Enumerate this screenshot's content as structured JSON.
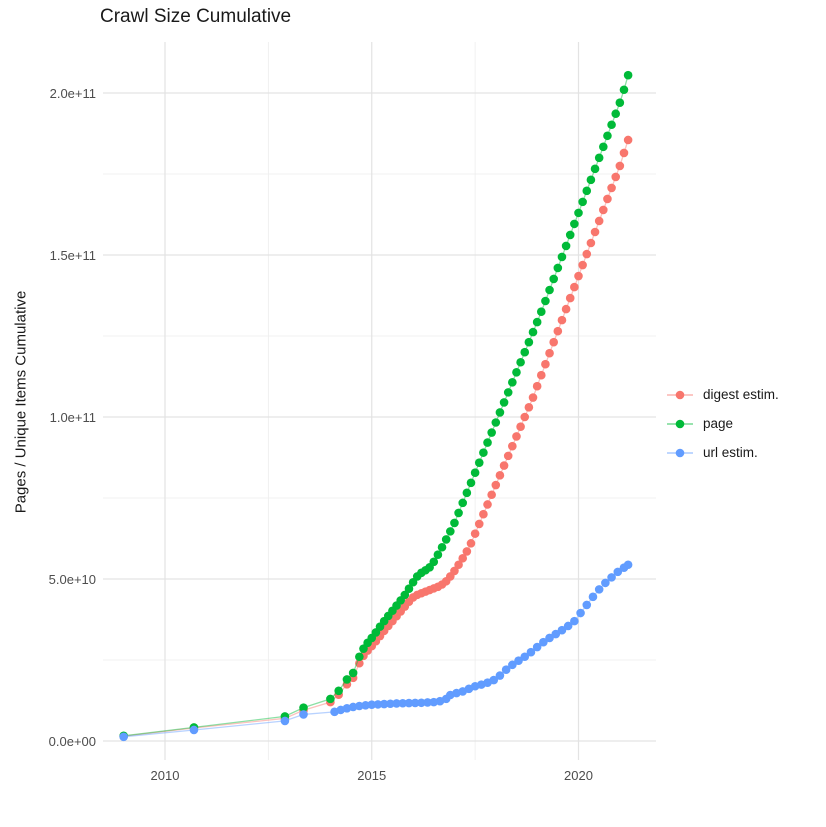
{
  "title": "Crawl Size Cumulative",
  "y_axis": {
    "title": "Pages / Unique Items Cumulative",
    "ticks": [
      {
        "label": "0.0e+00",
        "value_e9": 0
      },
      {
        "label": "5.0e+10",
        "value_e9": 50
      },
      {
        "label": "1.0e+11",
        "value_e9": 100
      },
      {
        "label": "1.5e+11",
        "value_e9": 150
      },
      {
        "label": "2.0e+11",
        "value_e9": 200
      }
    ],
    "minor_e9": [
      25,
      75,
      125,
      175
    ]
  },
  "x_axis": {
    "ticks": [
      {
        "label": "2010",
        "value": 2010
      },
      {
        "label": "2015",
        "value": 2015
      },
      {
        "label": "2020",
        "value": 2020
      }
    ],
    "minor": [
      2012.5,
      2017.5
    ]
  },
  "legend": {
    "position": "right",
    "items": [
      {
        "label": "digest estim.",
        "color": "#F8766D"
      },
      {
        "label": "page",
        "color": "#00BA38"
      },
      {
        "label": "url estim.",
        "color": "#619CFF"
      }
    ]
  },
  "colors": {
    "grid_major": "#e3e3e3",
    "grid_minor": "#ededed",
    "axis_text": "#4d4d4d",
    "title_text": "#1a1a1a"
  },
  "chart_data": {
    "type": "scatter",
    "title": "Crawl Size Cumulative",
    "xlabel": "",
    "ylabel": "Pages / Unique Items Cumulative",
    "values_unit": "1e9 (billions of pages / unique items, cumulative)",
    "xlim": [
      2008.45,
      2021.9
    ],
    "ylim_e9": [
      -6,
      216
    ],
    "grid": "major+minor",
    "legend_position": "right",
    "series": [
      {
        "name": "digest estim.",
        "color": "#F8766D",
        "points": [
          [
            2009,
            1.5
          ],
          [
            2010.7,
            4
          ],
          [
            2012.9,
            7
          ],
          [
            2013.35,
            9.5
          ],
          [
            2014,
            12
          ],
          [
            2014.2,
            14.3
          ],
          [
            2014.4,
            17.5
          ],
          [
            2014.55,
            19.5
          ],
          [
            2014.7,
            24
          ],
          [
            2014.8,
            26.3
          ],
          [
            2014.9,
            27.9
          ],
          [
            2015,
            29.3
          ],
          [
            2015.1,
            30.8
          ],
          [
            2015.2,
            32.4
          ],
          [
            2015.3,
            34
          ],
          [
            2015.4,
            35.5
          ],
          [
            2015.5,
            37
          ],
          [
            2015.6,
            38.5
          ],
          [
            2015.7,
            40
          ],
          [
            2015.8,
            41.5
          ],
          [
            2015.9,
            43
          ],
          [
            2016,
            44.3
          ],
          [
            2016.1,
            45.1
          ],
          [
            2016.2,
            45.6
          ],
          [
            2016.3,
            46.1
          ],
          [
            2016.4,
            46.6
          ],
          [
            2016.5,
            47.1
          ],
          [
            2016.6,
            47.6
          ],
          [
            2016.7,
            48.3
          ],
          [
            2016.8,
            49.3
          ],
          [
            2016.9,
            50.8
          ],
          [
            2017,
            52.5
          ],
          [
            2017.1,
            54.4
          ],
          [
            2017.2,
            56.4
          ],
          [
            2017.3,
            58.5
          ],
          [
            2017.4,
            61
          ],
          [
            2017.5,
            64
          ],
          [
            2017.6,
            67
          ],
          [
            2017.7,
            70
          ],
          [
            2017.8,
            73
          ],
          [
            2017.9,
            76
          ],
          [
            2018,
            79
          ],
          [
            2018.1,
            82
          ],
          [
            2018.2,
            85
          ],
          [
            2018.3,
            88
          ],
          [
            2018.4,
            91
          ],
          [
            2018.5,
            94
          ],
          [
            2018.6,
            97
          ],
          [
            2018.7,
            100
          ],
          [
            2018.8,
            103
          ],
          [
            2018.9,
            106
          ],
          [
            2019,
            109.5
          ],
          [
            2019.1,
            112.9
          ],
          [
            2019.2,
            116.3
          ],
          [
            2019.3,
            119.7
          ],
          [
            2019.4,
            123.1
          ],
          [
            2019.5,
            126.5
          ],
          [
            2019.6,
            129.9
          ],
          [
            2019.7,
            133.3
          ],
          [
            2019.8,
            136.7
          ],
          [
            2019.9,
            140.1
          ],
          [
            2020,
            143.5
          ],
          [
            2020.1,
            146.9
          ],
          [
            2020.2,
            150.3
          ],
          [
            2020.3,
            153.7
          ],
          [
            2020.4,
            157.1
          ],
          [
            2020.5,
            160.5
          ],
          [
            2020.6,
            163.9
          ],
          [
            2020.7,
            167.3
          ],
          [
            2020.8,
            170.7
          ],
          [
            2020.9,
            174.1
          ],
          [
            2021,
            177.5
          ],
          [
            2021.1,
            181.5
          ],
          [
            2021.2,
            185.5
          ]
        ]
      },
      {
        "name": "page",
        "color": "#00BA38",
        "points": [
          [
            2009,
            1.6
          ],
          [
            2010.7,
            4.2
          ],
          [
            2012.9,
            7.6
          ],
          [
            2013.35,
            10.3
          ],
          [
            2014,
            13
          ],
          [
            2014.2,
            15.5
          ],
          [
            2014.4,
            19
          ],
          [
            2014.55,
            21
          ],
          [
            2014.7,
            26
          ],
          [
            2014.8,
            28.5
          ],
          [
            2014.9,
            30.3
          ],
          [
            2015,
            31.8
          ],
          [
            2015.1,
            33.5
          ],
          [
            2015.2,
            35.3
          ],
          [
            2015.3,
            37
          ],
          [
            2015.4,
            38.6
          ],
          [
            2015.5,
            40.2
          ],
          [
            2015.6,
            41.8
          ],
          [
            2015.7,
            43.4
          ],
          [
            2015.8,
            45.1
          ],
          [
            2015.9,
            47
          ],
          [
            2016,
            49
          ],
          [
            2016.1,
            50.8
          ],
          [
            2016.2,
            51.9
          ],
          [
            2016.3,
            52.7
          ],
          [
            2016.4,
            53.6
          ],
          [
            2016.5,
            55.3
          ],
          [
            2016.6,
            57.5
          ],
          [
            2016.7,
            59.8
          ],
          [
            2016.8,
            62.2
          ],
          [
            2016.9,
            64.7
          ],
          [
            2017,
            67.3
          ],
          [
            2017.1,
            70.4
          ],
          [
            2017.2,
            73.5
          ],
          [
            2017.3,
            76.6
          ],
          [
            2017.4,
            79.7
          ],
          [
            2017.5,
            82.8
          ],
          [
            2017.6,
            85.9
          ],
          [
            2017.7,
            89
          ],
          [
            2017.8,
            92.1
          ],
          [
            2017.9,
            95.2
          ],
          [
            2018,
            98.3
          ],
          [
            2018.1,
            101.4
          ],
          [
            2018.2,
            104.5
          ],
          [
            2018.3,
            107.6
          ],
          [
            2018.4,
            110.7
          ],
          [
            2018.5,
            113.8
          ],
          [
            2018.6,
            116.9
          ],
          [
            2018.7,
            120
          ],
          [
            2018.8,
            123.1
          ],
          [
            2018.9,
            126.2
          ],
          [
            2019,
            129.3
          ],
          [
            2019.1,
            132.5
          ],
          [
            2019.2,
            135.8
          ],
          [
            2019.3,
            139.2
          ],
          [
            2019.4,
            142.6
          ],
          [
            2019.5,
            146
          ],
          [
            2019.6,
            149.4
          ],
          [
            2019.7,
            152.8
          ],
          [
            2019.8,
            156.2
          ],
          [
            2019.9,
            159.6
          ],
          [
            2020,
            163
          ],
          [
            2020.1,
            166.4
          ],
          [
            2020.2,
            169.8
          ],
          [
            2020.3,
            173.2
          ],
          [
            2020.4,
            176.6
          ],
          [
            2020.5,
            180
          ],
          [
            2020.6,
            183.4
          ],
          [
            2020.7,
            186.8
          ],
          [
            2020.8,
            190.2
          ],
          [
            2020.9,
            193.6
          ],
          [
            2021,
            197
          ],
          [
            2021.1,
            201
          ],
          [
            2021.2,
            205.5
          ]
        ]
      },
      {
        "name": "url estim.",
        "color": "#619CFF",
        "points": [
          [
            2009,
            1.3
          ],
          [
            2010.7,
            3.4
          ],
          [
            2012.9,
            6.2
          ],
          [
            2013.35,
            8.2
          ],
          [
            2014.1,
            9
          ],
          [
            2014.25,
            9.6
          ],
          [
            2014.4,
            10.1
          ],
          [
            2014.55,
            10.5
          ],
          [
            2014.7,
            10.8
          ],
          [
            2014.85,
            11
          ],
          [
            2015,
            11.2
          ],
          [
            2015.15,
            11.3
          ],
          [
            2015.3,
            11.4
          ],
          [
            2015.45,
            11.5
          ],
          [
            2015.6,
            11.6
          ],
          [
            2015.75,
            11.65
          ],
          [
            2015.9,
            11.7
          ],
          [
            2016.05,
            11.75
          ],
          [
            2016.2,
            11.8
          ],
          [
            2016.35,
            11.9
          ],
          [
            2016.5,
            12
          ],
          [
            2016.65,
            12.3
          ],
          [
            2016.8,
            13
          ],
          [
            2016.9,
            14.2
          ],
          [
            2017.05,
            14.8
          ],
          [
            2017.2,
            15.3
          ],
          [
            2017.35,
            16.1
          ],
          [
            2017.5,
            16.9
          ],
          [
            2017.65,
            17.4
          ],
          [
            2017.8,
            18
          ],
          [
            2017.95,
            18.8
          ],
          [
            2018.1,
            20.2
          ],
          [
            2018.25,
            22
          ],
          [
            2018.4,
            23.5
          ],
          [
            2018.55,
            24.8
          ],
          [
            2018.7,
            26
          ],
          [
            2018.85,
            27.4
          ],
          [
            2019,
            29
          ],
          [
            2019.15,
            30.5
          ],
          [
            2019.3,
            31.8
          ],
          [
            2019.45,
            33
          ],
          [
            2019.6,
            34.2
          ],
          [
            2019.75,
            35.5
          ],
          [
            2019.9,
            37
          ],
          [
            2020.05,
            39.5
          ],
          [
            2020.2,
            42
          ],
          [
            2020.35,
            44.5
          ],
          [
            2020.5,
            46.8
          ],
          [
            2020.65,
            48.8
          ],
          [
            2020.8,
            50.5
          ],
          [
            2020.95,
            52.2
          ],
          [
            2021.1,
            53.5
          ],
          [
            2021.2,
            54.4
          ]
        ]
      }
    ]
  }
}
